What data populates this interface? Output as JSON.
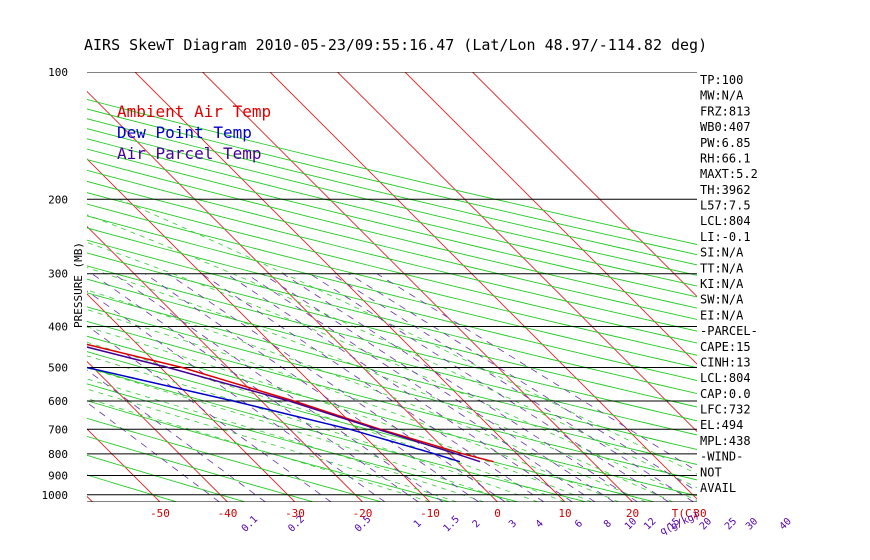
{
  "chart_data": {
    "type": "line",
    "title": "AIRS SkewT Diagram 2010-05-23/09:55:16.47 (Lat/Lon 48.97/-114.82 deg)",
    "ylabel": "PRESSURE (MB)",
    "y_scale": "log",
    "ylim": [
      1040,
      100
    ],
    "pressure_ticks": [
      100,
      200,
      300,
      400,
      500,
      600,
      700,
      800,
      900,
      1000
    ],
    "top_temp_ticks": [
      -120,
      -110,
      -100,
      -90,
      -80,
      -70,
      -60,
      -50,
      -40
    ],
    "bottom_temp_ticks": [
      -50,
      -40,
      -30,
      -20,
      -10,
      0,
      10,
      20,
      30
    ],
    "bottom_temp_unit": "T(C)",
    "mixing_ratio_ticks": [
      "0.1",
      "0.2",
      "0.5",
      "1",
      "1.5",
      "2",
      "3",
      "4",
      "6",
      "8",
      "10",
      "12",
      "15",
      "20",
      "25",
      "30",
      "40"
    ],
    "mixing_ratio_unit": "q(g/kg)",
    "grid": true,
    "legend_position": "top-left",
    "series": [
      {
        "name": "Ambient Air Temp",
        "color": "#dd0000",
        "points": [
          {
            "p": 100,
            "t": -45.7
          },
          {
            "p": 150,
            "t": -49.7
          },
          {
            "p": 200,
            "t": -55.6
          },
          {
            "p": 250,
            "t": -56.7
          },
          {
            "p": 300,
            "t": -59.3
          },
          {
            "p": 400,
            "t": -45.8
          },
          {
            "p": 500,
            "t": -26.8
          },
          {
            "p": 600,
            "t": -15.2
          },
          {
            "p": 700,
            "t": -6.6
          },
          {
            "p": 800,
            "t": 2.0
          },
          {
            "p": 835,
            "t": 5.4
          }
        ]
      },
      {
        "name": "Dew Point Temp",
        "color": "#0000cc",
        "points": [
          {
            "p": 100,
            "t": -79.0
          },
          {
            "p": 150,
            "t": -85.8
          },
          {
            "p": 200,
            "t": -84.7
          },
          {
            "p": 250,
            "t": -77.6
          },
          {
            "p": 300,
            "t": -69.8
          },
          {
            "p": 400,
            "t": -56.5
          },
          {
            "p": 500,
            "t": -40.9
          },
          {
            "p": 600,
            "t": -24.2
          },
          {
            "p": 700,
            "t": -11.1
          },
          {
            "p": 800,
            "t": -2.2
          },
          {
            "p": 835,
            "t": 0.4
          }
        ]
      },
      {
        "name": "Air Parcel Temp",
        "color": "#440099",
        "points": [
          {
            "p": 100,
            "t": -107.3
          },
          {
            "p": 150,
            "t": -95.8
          },
          {
            "p": 200,
            "t": -85.3
          },
          {
            "p": 250,
            "t": -76.3
          },
          {
            "p": 300,
            "t": -68.3
          },
          {
            "p": 400,
            "t": -46.9
          },
          {
            "p": 500,
            "t": -28.9
          },
          {
            "p": 600,
            "t": -15.9
          },
          {
            "p": 700,
            "t": -7.0
          },
          {
            "p": 800,
            "t": 1.0
          },
          {
            "p": 835,
            "t": 3.4
          }
        ]
      }
    ],
    "indices": [
      "TP:100",
      "MW:N/A",
      "FRZ:813",
      "WB0:407",
      "PW:6.85",
      "RH:66.1",
      "MAXT:5.2",
      "TH:3962",
      "L57:7.5",
      "LCL:804",
      "LI:-0.1",
      "SI:N/A",
      "TT:N/A",
      "KI:N/A",
      "SW:N/A",
      "EI:N/A",
      "-PARCEL-",
      "CAPE:15",
      "CINH:13",
      "LCL:804",
      "CAP:0.0",
      "LFC:732",
      "EL:494",
      "MPL:438",
      "-WIND-",
      "NOT",
      "AVAIL"
    ]
  }
}
